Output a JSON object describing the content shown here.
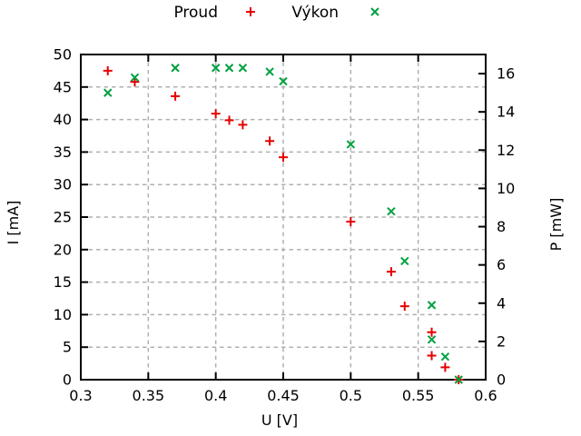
{
  "chart_data": {
    "type": "scatter",
    "title": "",
    "xlabel": "U [V]",
    "ylabel_left": "I [mA]",
    "ylabel_right": "P [mW]",
    "x_range": [
      0.3,
      0.6
    ],
    "x_ticks": [
      0.3,
      0.35,
      0.4,
      0.45,
      0.5,
      0.55,
      0.6
    ],
    "x_tick_labels": [
      "0.3",
      "0.35",
      "0.4",
      "0.45",
      "0.5",
      "0.55",
      "0.6"
    ],
    "y_left_range": [
      0,
      50
    ],
    "y_left_ticks": [
      0,
      5,
      10,
      15,
      20,
      25,
      30,
      35,
      40,
      45,
      50
    ],
    "y_right_range": [
      0,
      17
    ],
    "y_right_ticks": [
      0,
      2,
      4,
      6,
      8,
      10,
      12,
      14,
      16
    ],
    "grid": true,
    "legend_position": "top-center",
    "colors": {
      "grid": "#b0b0b0",
      "frame": "#000000",
      "text": "#000000"
    },
    "series": [
      {
        "name": "Proud",
        "marker": "plus",
        "color": "#e60000",
        "axis": "left",
        "points": [
          [
            0.32,
            47.5
          ],
          [
            0.34,
            45.8
          ],
          [
            0.37,
            43.6
          ],
          [
            0.4,
            40.9
          ],
          [
            0.41,
            39.9
          ],
          [
            0.42,
            39.2
          ],
          [
            0.44,
            36.7
          ],
          [
            0.45,
            34.2
          ],
          [
            0.5,
            24.3
          ],
          [
            0.53,
            16.6
          ],
          [
            0.54,
            11.3
          ],
          [
            0.56,
            7.3
          ],
          [
            0.56,
            3.7
          ],
          [
            0.57,
            1.9
          ],
          [
            0.58,
            0
          ]
        ]
      },
      {
        "name": "Výkon",
        "marker": "cross",
        "color": "#00a040",
        "axis": "right",
        "points": [
          [
            0.32,
            15.0
          ],
          [
            0.34,
            15.8
          ],
          [
            0.37,
            16.3
          ],
          [
            0.4,
            16.3
          ],
          [
            0.41,
            16.3
          ],
          [
            0.42,
            16.3
          ],
          [
            0.44,
            16.1
          ],
          [
            0.45,
            15.6
          ],
          [
            0.5,
            12.3
          ],
          [
            0.53,
            8.8
          ],
          [
            0.54,
            6.2
          ],
          [
            0.56,
            3.9
          ],
          [
            0.56,
            2.1
          ],
          [
            0.57,
            1.2
          ],
          [
            0.58,
            0
          ]
        ]
      }
    ]
  }
}
